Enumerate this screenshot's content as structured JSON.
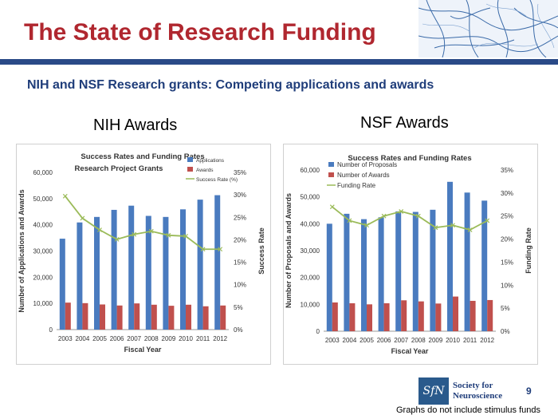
{
  "slide": {
    "title": "The State of Research Funding",
    "subtitle": "NIH and NSF Research grants: Competing applications and awards",
    "nih_label": "NIH Awards",
    "nsf_label": "NSF Awards",
    "logo_text": "SfN",
    "org_line1": "Society for",
    "org_line2": "Neuroscience",
    "page_number": "9",
    "footnote": "Graphs do not include stimulus funds"
  },
  "colors": {
    "title": "#b0272f",
    "accent_bar": "#2a4a87",
    "bar_blue": "#4a7bbf",
    "bar_red": "#c0504d",
    "line_green": "#9bbb59"
  },
  "chart_data": [
    {
      "type": "bar",
      "title": "Success Rates and Funding Rates",
      "subtitle": "Research Project Grants",
      "xlabel": "Fiscal Year",
      "ylabel": "Number of Applications and Awards",
      "y2label": "Success Rate",
      "categories": [
        "2003",
        "2004",
        "2005",
        "2006",
        "2007",
        "2008",
        "2009",
        "2010",
        "2011",
        "2012"
      ],
      "ylim": [
        0,
        60000
      ],
      "yticks": [
        "0",
        "10,000",
        "20,000",
        "30,000",
        "40,000",
        "50,000",
        "60,000"
      ],
      "y2lim": [
        0,
        35
      ],
      "y2ticks": [
        "0%",
        "5%",
        "10%",
        "15%",
        "20%",
        "25%",
        "30%",
        "35%"
      ],
      "legend_position": "top-right",
      "series": [
        {
          "name": "Applications",
          "kind": "bar",
          "color": "#4a7bbf",
          "values": [
            34700,
            40900,
            43000,
            45700,
            47300,
            43400,
            43000,
            45900,
            49600,
            51300
          ]
        },
        {
          "name": "Awards",
          "kind": "bar",
          "color": "#c0504d",
          "values": [
            10300,
            10100,
            9600,
            9200,
            10000,
            9500,
            9100,
            9500,
            8900,
            9200
          ]
        },
        {
          "name": "Success Rate (%)",
          "kind": "line",
          "axis": "secondary",
          "color": "#9bbb59",
          "values": [
            29.7,
            24.8,
            22.2,
            20.1,
            21.2,
            21.9,
            21.0,
            20.8,
            17.9,
            17.9
          ]
        }
      ]
    },
    {
      "type": "bar",
      "title": "Success Rates and Funding Rates",
      "subtitle": "",
      "xlabel": "Fiscal Year",
      "ylabel": "Number of Proposals and Awards",
      "y2label": "Funding Rate",
      "categories": [
        "2003",
        "2004",
        "2005",
        "2006",
        "2007",
        "2008",
        "2009",
        "2010",
        "2011",
        "2012"
      ],
      "ylim": [
        0,
        60000
      ],
      "yticks": [
        "0",
        "10,000",
        "20,000",
        "30,000",
        "40,000",
        "50,000",
        "60,000"
      ],
      "y2lim": [
        0,
        35
      ],
      "y2ticks": [
        "0%",
        "5%",
        "10%",
        "15%",
        "20%",
        "25%",
        "30%",
        "35%"
      ],
      "legend_position": "top-left",
      "series": [
        {
          "name": "Number of Proposals",
          "kind": "bar",
          "color": "#4a7bbf",
          "values": [
            40000,
            43700,
            41700,
            42400,
            44600,
            44400,
            45200,
            55600,
            51600,
            48600
          ]
        },
        {
          "name": "Number of Awards",
          "kind": "bar",
          "color": "#c0504d",
          "values": [
            10700,
            10400,
            10000,
            10400,
            11500,
            11100,
            10300,
            12900,
            11300,
            11600
          ]
        },
        {
          "name": "Funding Rate",
          "kind": "line",
          "axis": "secondary",
          "color": "#9bbb59",
          "values": [
            27.0,
            24.0,
            23.0,
            25.0,
            26.0,
            25.0,
            22.5,
            23.0,
            22.0,
            24.0
          ]
        }
      ]
    }
  ]
}
